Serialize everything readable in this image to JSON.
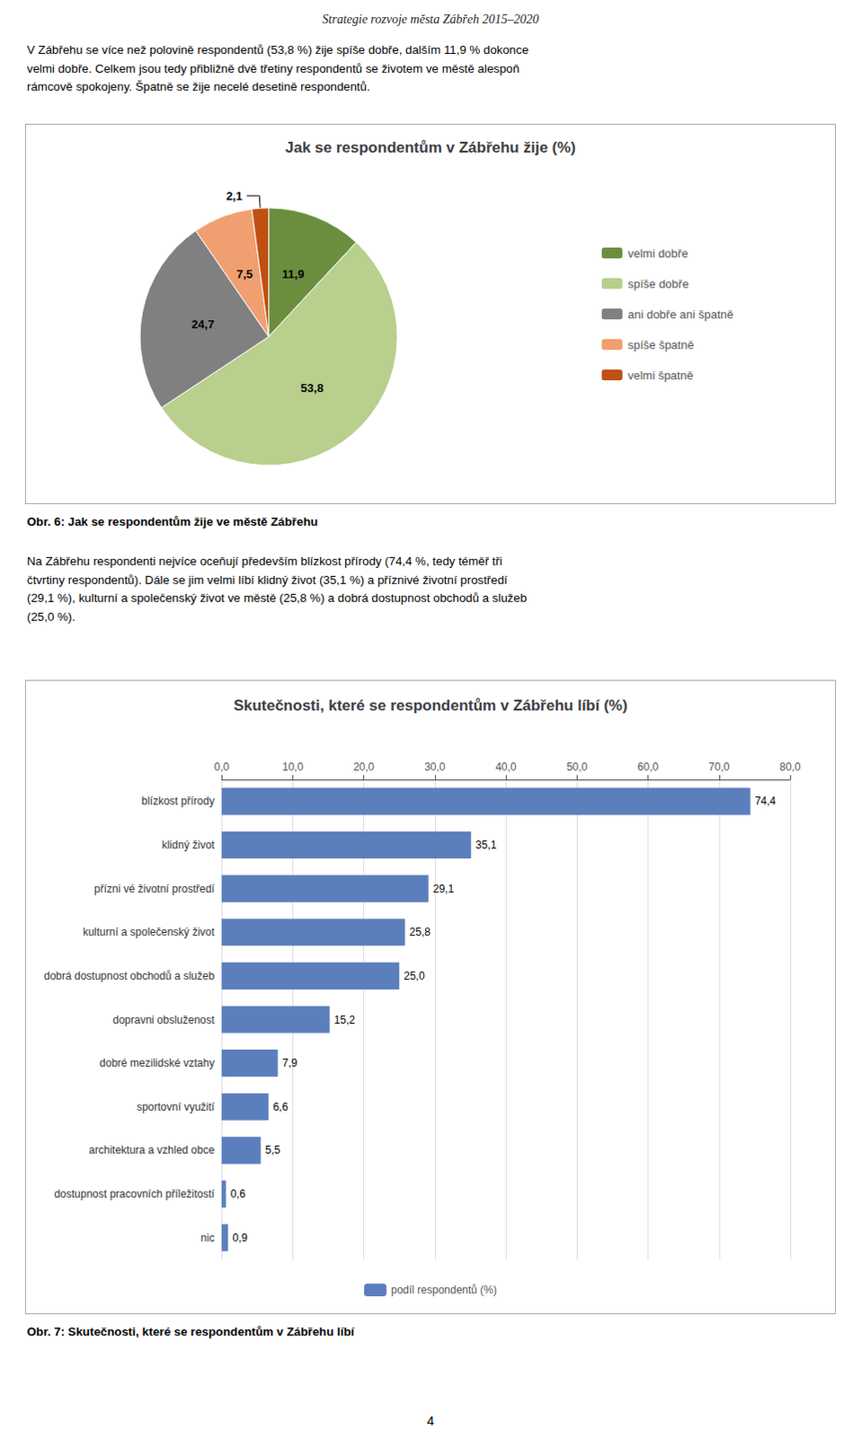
{
  "page_title": "Strategie rozvoje města Zábřeh 2015–2020",
  "paragraphs": [
    "V Zábřehu se více než polovině respondentů (53,8 %) žije spíše dobře, dalším 11,9 % dokonce\nvelmi dobře. Celkem jsou tedy přibližně dvě třetiny respondentů se životem ve městě alespoň\nrámcově spokojeny. Špatně se žije necelé desetině respondentů.",
    "Na Zábřehu respondenti nejvíce oceňují především blízkost přírody (74,4 %, tedy téměř tři\nčtvrtiny respondentů). Dále se jim velmi líbí klidný život (35,1 %) a příznivé životní prostředí\n(29,1 %), kulturní a společenský život ve městě (25,8 %) a dobrá dostupnost obchodů a služeb\n(25,0 %)."
  ],
  "page_number": "4",
  "chart_data": [
    {
      "type": "pie",
      "title": "Jak se respondentům v Zábřehu žije (%)",
      "caption": "Obr. 6: Jak se respondentům žije ve městě Zábřehu",
      "categories": [
        "velmi dobře",
        "spíše dobře",
        "ani dobře ani špatně",
        "spíše špatně",
        "velmi špatně"
      ],
      "values": [
        11.9,
        53.8,
        24.7,
        7.5,
        2.1
      ],
      "value_labels": [
        "11,9",
        "53,8",
        "24,7",
        "7,5",
        "2,1"
      ],
      "colors": [
        "#6b8e3e",
        "#b8cf8e",
        "#808080",
        "#f0a070",
        "#c05010"
      ],
      "data_labels": true,
      "legend": "right"
    },
    {
      "type": "bar",
      "orientation": "horizontal",
      "title": "Skutečnosti, které se respondentům v Zábřehu líbí (%)",
      "caption": "Obr. 7: Skutečnosti, které se respondentům v Zábřehu líbí",
      "categories": [
        "blízkost přírody",
        "klidný život",
        "přízni vé životní prostředí",
        "kulturní a společenský život",
        "dobrá dostupnost obchodů a služeb",
        "dopravni obsluženost",
        "dobré mezilidské vztahy",
        "sportovní využití",
        "architektura a vzhled obce",
        "dostupnost pracovních příležitostí",
        "nic"
      ],
      "series": [
        {
          "name": "podíl respondentů (%)",
          "color": "#5b7fbc",
          "values": [
            74.4,
            35.1,
            29.1,
            25.8,
            25.0,
            15.2,
            7.9,
            6.6,
            5.5,
            0.6,
            0.9
          ],
          "value_labels": [
            "74,4",
            "35,1",
            "29,1",
            "25,8",
            "25,0",
            "15,2",
            "7,9",
            "6,6",
            "5,5",
            "0,6",
            "0,9"
          ]
        }
      ],
      "xlim": [
        0,
        80
      ],
      "xticks": [
        {
          "value": 0,
          "label": "0,0"
        },
        {
          "value": 10,
          "label": "10,0"
        },
        {
          "value": 20,
          "label": "20,0"
        },
        {
          "value": 30,
          "label": "30,0"
        },
        {
          "value": 40,
          "label": "40,0"
        },
        {
          "value": 50,
          "label": "50,0"
        },
        {
          "value": 60,
          "label": "60,0"
        },
        {
          "value": 70,
          "label": "70,0"
        },
        {
          "value": 80,
          "label": "80,0"
        }
      ],
      "grid": true,
      "data_labels": true,
      "legend": "bottom"
    }
  ]
}
